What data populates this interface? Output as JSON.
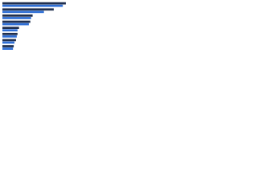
{
  "chart_data": {
    "type": "bar",
    "orientation": "horizontal",
    "categories": [
      null,
      null,
      null,
      null,
      null,
      null,
      null,
      null
    ],
    "series": [
      {
        "color": "#1f2f4f",
        "values": [
          84,
          68,
          40,
          37,
          22,
          20,
          18,
          15
        ]
      },
      {
        "color": "#2f6fd6",
        "values": [
          80,
          55,
          38,
          35,
          20,
          19,
          16,
          14
        ]
      }
    ],
    "xlim": [
      0,
      100
    ]
  }
}
